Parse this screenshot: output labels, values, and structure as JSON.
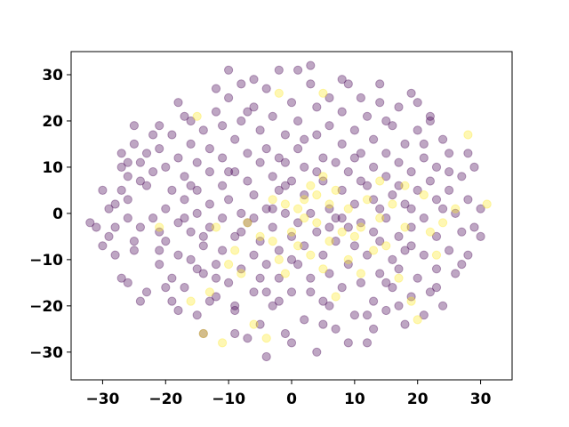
{
  "chart_data": {
    "type": "scatter",
    "title": "",
    "xlabel": "",
    "ylabel": "",
    "xlim": [
      -35,
      35
    ],
    "ylim": [
      -36,
      35
    ],
    "xticks": [
      -30,
      -20,
      -10,
      0,
      10,
      20,
      30
    ],
    "yticks": [
      -30,
      -20,
      -10,
      0,
      10,
      20,
      30
    ],
    "grid": false,
    "legend": "none",
    "marker_alpha": 0.35,
    "series": [
      {
        "color": "#440154",
        "points": [
          [
            -32,
            -2
          ],
          [
            -31,
            -3
          ],
          [
            -30,
            5
          ],
          [
            -30,
            -7
          ],
          [
            -29,
            1
          ],
          [
            -28,
            -3
          ],
          [
            -28,
            -9
          ],
          [
            -27,
            13
          ],
          [
            -27,
            10
          ],
          [
            -27,
            5
          ],
          [
            -27,
            -14
          ],
          [
            -26,
            -1
          ],
          [
            -26,
            3
          ],
          [
            -26,
            11
          ],
          [
            -26,
            -15
          ],
          [
            -25,
            -8
          ],
          [
            -25,
            19
          ],
          [
            -25,
            15
          ],
          [
            -24,
            11
          ],
          [
            -24,
            -19
          ],
          [
            -24,
            -3
          ],
          [
            -23,
            6
          ],
          [
            -23,
            13
          ],
          [
            -22,
            -1
          ],
          [
            -22,
            9
          ],
          [
            -21,
            -4
          ],
          [
            -21,
            14
          ],
          [
            -21,
            19
          ],
          [
            -21,
            -11
          ],
          [
            -20,
            1
          ],
          [
            -20,
            -6
          ],
          [
            -20,
            10
          ],
          [
            -19,
            -14
          ],
          [
            -19,
            5
          ],
          [
            -19,
            17
          ],
          [
            -18,
            -9
          ],
          [
            -18,
            12
          ],
          [
            -18,
            -2
          ],
          [
            -18,
            24
          ],
          [
            -17,
            3
          ],
          [
            -17,
            -16
          ],
          [
            -17,
            8
          ],
          [
            -16,
            -10
          ],
          [
            -16,
            15
          ],
          [
            -16,
            -4
          ],
          [
            -16,
            20
          ],
          [
            -15,
            0
          ],
          [
            -15,
            -22
          ],
          [
            -15,
            11
          ],
          [
            -15,
            5
          ],
          [
            -14,
            -7
          ],
          [
            -14,
            18
          ],
          [
            -14,
            -13
          ],
          [
            -13,
            2
          ],
          [
            -13,
            9
          ],
          [
            -13,
            -3
          ],
          [
            -13,
            14
          ],
          [
            -12,
            -11
          ],
          [
            -12,
            22
          ],
          [
            -12,
            -18
          ],
          [
            -11,
            6
          ],
          [
            -11,
            -1
          ],
          [
            -11,
            12
          ],
          [
            -11,
            -8
          ],
          [
            -10,
            25
          ],
          [
            -10,
            31
          ],
          [
            -10,
            -15
          ],
          [
            -10,
            3
          ],
          [
            -9,
            16
          ],
          [
            -9,
            -5
          ],
          [
            -9,
            9
          ],
          [
            -9,
            -21
          ],
          [
            -8,
            28
          ],
          [
            -8,
            -12
          ],
          [
            -8,
            0
          ],
          [
            -8,
            20
          ],
          [
            -7,
            -2
          ],
          [
            -7,
            7
          ],
          [
            -7,
            -27
          ],
          [
            -7,
            13
          ],
          [
            -6,
            -9
          ],
          [
            -6,
            23
          ],
          [
            -6,
            -17
          ],
          [
            -6,
            4
          ],
          [
            -5,
            11
          ],
          [
            -5,
            -6
          ],
          [
            -5,
            18
          ],
          [
            -5,
            -24
          ],
          [
            -4,
            1
          ],
          [
            -4,
            14
          ],
          [
            -4,
            -11
          ],
          [
            -4,
            27
          ],
          [
            -3,
            -3
          ],
          [
            -3,
            8
          ],
          [
            -3,
            -20
          ],
          [
            -3,
            21
          ],
          [
            -2,
            -14
          ],
          [
            -2,
            5
          ],
          [
            -2,
            31
          ],
          [
            -2,
            -8
          ],
          [
            -1,
            17
          ],
          [
            -1,
            0
          ],
          [
            -1,
            -26
          ],
          [
            -1,
            11
          ],
          [
            0,
            -5
          ],
          [
            0,
            24
          ],
          [
            0,
            -17
          ],
          [
            0,
            7
          ],
          [
            1,
            14
          ],
          [
            1,
            -11
          ],
          [
            1,
            -2
          ],
          [
            1,
            20
          ],
          [
            2,
            -23
          ],
          [
            2,
            4
          ],
          [
            2,
            10
          ],
          [
            2,
            -7
          ],
          [
            3,
            28
          ],
          [
            3,
            32
          ],
          [
            3,
            -14
          ],
          [
            3,
            0
          ],
          [
            4,
            17
          ],
          [
            4,
            -30
          ],
          [
            4,
            -4
          ],
          [
            4,
            23
          ],
          [
            5,
            7
          ],
          [
            5,
            -19
          ],
          [
            5,
            12
          ],
          [
            5,
            -9
          ],
          [
            6,
            1
          ],
          [
            6,
            25
          ],
          [
            6,
            -13
          ],
          [
            6,
            19
          ],
          [
            7,
            -1
          ],
          [
            7,
            11
          ],
          [
            7,
            -25
          ],
          [
            7,
            -6
          ],
          [
            8,
            15
          ],
          [
            8,
            5
          ],
          [
            8,
            -16
          ],
          [
            8,
            22
          ],
          [
            9,
            -3
          ],
          [
            9,
            9
          ],
          [
            9,
            -11
          ],
          [
            9,
            28
          ],
          [
            10,
            2
          ],
          [
            10,
            -22
          ],
          [
            10,
            18
          ],
          [
            10,
            -7
          ],
          [
            11,
            13
          ],
          [
            11,
            -2
          ],
          [
            11,
            25
          ],
          [
            11,
            -15
          ],
          [
            12,
            6
          ],
          [
            12,
            -9
          ],
          [
            12,
            21
          ],
          [
            12,
            -28
          ],
          [
            13,
            -4
          ],
          [
            13,
            10
          ],
          [
            13,
            -19
          ],
          [
            13,
            16
          ],
          [
            14,
            1
          ],
          [
            14,
            -13
          ],
          [
            14,
            24
          ],
          [
            14,
            -6
          ],
          [
            15,
            8
          ],
          [
            15,
            -21
          ],
          [
            15,
            13
          ],
          [
            15,
            -1
          ],
          [
            16,
            -10
          ],
          [
            16,
            19
          ],
          [
            16,
            4
          ],
          [
            16,
            -16
          ],
          [
            17,
            -5
          ],
          [
            17,
            11
          ],
          [
            17,
            23
          ],
          [
            17,
            -12
          ],
          [
            18,
            2
          ],
          [
            18,
            -8
          ],
          [
            18,
            15
          ],
          [
            19,
            -3
          ],
          [
            19,
            9
          ],
          [
            19,
            -18
          ],
          [
            19,
            26
          ],
          [
            20,
            -14
          ],
          [
            20,
            5
          ],
          [
            20,
            18
          ],
          [
            21,
            -1
          ],
          [
            21,
            12
          ],
          [
            21,
            -9
          ],
          [
            22,
            7
          ],
          [
            22,
            -17
          ],
          [
            22,
            21
          ],
          [
            23,
            -5
          ],
          [
            23,
            10
          ],
          [
            23,
            -12
          ],
          [
            24,
            1
          ],
          [
            24,
            16
          ],
          [
            25,
            -8
          ],
          [
            25,
            5
          ],
          [
            25,
            13
          ],
          [
            26,
            -13
          ],
          [
            26,
            0
          ],
          [
            27,
            -4
          ],
          [
            27,
            8
          ],
          [
            28,
            -9
          ],
          [
            28,
            3
          ],
          [
            29,
            -3
          ],
          [
            29,
            10
          ],
          [
            30,
            1
          ],
          [
            30,
            -5
          ],
          [
            -28,
            2
          ],
          [
            -23,
            -17
          ],
          [
            -22,
            17
          ],
          [
            -19,
            -19
          ],
          [
            -17,
            21
          ],
          [
            -14,
            -26
          ],
          [
            -12,
            27
          ],
          [
            -9,
            -20
          ],
          [
            -6,
            29
          ],
          [
            -4,
            -31
          ],
          [
            0,
            -28
          ],
          [
            1,
            31
          ],
          [
            5,
            -24
          ],
          [
            8,
            29
          ],
          [
            12,
            -22
          ],
          [
            14,
            28
          ],
          [
            18,
            -24
          ],
          [
            20,
            24
          ],
          [
            24,
            -20
          ],
          [
            22,
            20
          ],
          [
            -25,
            -6
          ],
          [
            -24,
            7
          ],
          [
            -21,
            -8
          ],
          [
            -20,
            -16
          ],
          [
            -17,
            -1
          ],
          [
            -15,
            -12
          ],
          [
            -13,
            -19
          ],
          [
            -11,
            19
          ],
          [
            -8,
            -4
          ],
          [
            -7,
            22
          ],
          [
            -5,
            -14
          ],
          [
            -3,
            1
          ],
          [
            -2,
            -19
          ],
          [
            -1,
            6
          ],
          [
            3,
            -17
          ],
          [
            6,
            -3
          ],
          [
            9,
            -28
          ],
          [
            10,
            12
          ],
          [
            13,
            -25
          ],
          [
            15,
            20
          ],
          [
            17,
            -20
          ],
          [
            19,
            -7
          ],
          [
            21,
            15
          ],
          [
            23,
            -16
          ],
          [
            25,
            9
          ],
          [
            27,
            -11
          ],
          [
            28,
            13
          ],
          [
            -29,
            -5
          ],
          [
            -26,
            8
          ],
          [
            -18,
            -21
          ],
          [
            -16,
            6
          ],
          [
            -14,
            -5
          ],
          [
            -12,
            -14
          ],
          [
            -10,
            9
          ],
          [
            -9,
            -26
          ],
          [
            -6,
            -1
          ],
          [
            -4,
            -17
          ],
          [
            -2,
            12
          ],
          [
            0,
            -10
          ],
          [
            2,
            16
          ],
          [
            4,
            9
          ],
          [
            6,
            -20
          ],
          [
            8,
            -1
          ],
          [
            11,
            7
          ],
          [
            13,
            3
          ],
          [
            15,
            -15
          ],
          [
            17,
            6
          ],
          [
            19,
            1
          ],
          [
            21,
            -22
          ],
          [
            23,
            3
          ]
        ]
      },
      {
        "color": "#fde725",
        "points": [
          [
            -21,
            -3
          ],
          [
            -16,
            -19
          ],
          [
            -15,
            21
          ],
          [
            -14,
            -26
          ],
          [
            -13,
            -17
          ],
          [
            -11,
            -28
          ],
          [
            -10,
            -11
          ],
          [
            -9,
            -8
          ],
          [
            -8,
            -13
          ],
          [
            -6,
            -24
          ],
          [
            -5,
            -5
          ],
          [
            -3,
            -6
          ],
          [
            -3,
            3
          ],
          [
            -2,
            -10
          ],
          [
            -1,
            2
          ],
          [
            0,
            -4
          ],
          [
            1,
            1
          ],
          [
            1,
            -7
          ],
          [
            2,
            -1
          ],
          [
            2,
            3
          ],
          [
            3,
            -9
          ],
          [
            3,
            6
          ],
          [
            4,
            -2
          ],
          [
            4,
            4
          ],
          [
            5,
            -12
          ],
          [
            5,
            8
          ],
          [
            6,
            -6
          ],
          [
            6,
            2
          ],
          [
            7,
            -18
          ],
          [
            7,
            5
          ],
          [
            8,
            -4
          ],
          [
            9,
            -10
          ],
          [
            10,
            -5
          ],
          [
            11,
            -13
          ],
          [
            12,
            3
          ],
          [
            13,
            -8
          ],
          [
            14,
            -1
          ],
          [
            15,
            -7
          ],
          [
            16,
            2
          ],
          [
            17,
            -14
          ],
          [
            18,
            -3
          ],
          [
            18,
            6
          ],
          [
            19,
            -19
          ],
          [
            20,
            -23
          ],
          [
            21,
            4
          ],
          [
            22,
            -4
          ],
          [
            23,
            -9
          ],
          [
            26,
            1
          ],
          [
            28,
            17
          ],
          [
            31,
            2
          ],
          [
            -2,
            26
          ],
          [
            5,
            26
          ],
          [
            -4,
            -27
          ],
          [
            -12,
            -3
          ],
          [
            -7,
            -2
          ],
          [
            11,
            -3
          ],
          [
            14,
            7
          ],
          [
            24,
            -2
          ],
          [
            9,
            1
          ],
          [
            -1,
            -13
          ]
        ]
      }
    ]
  }
}
